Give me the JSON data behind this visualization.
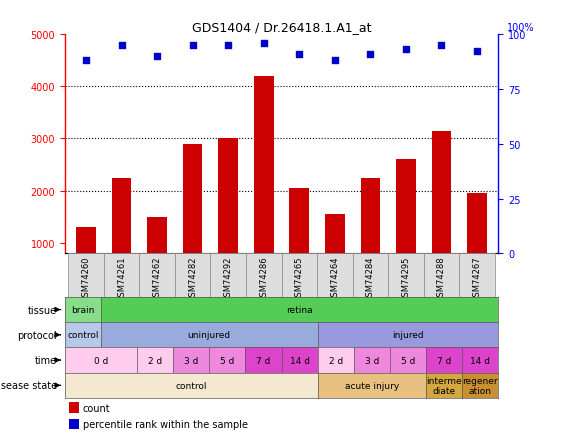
{
  "title": "GDS1404 / Dr.26418.1.A1_at",
  "samples": [
    "GSM74260",
    "GSM74261",
    "GSM74262",
    "GSM74282",
    "GSM74292",
    "GSM74286",
    "GSM74265",
    "GSM74264",
    "GSM74284",
    "GSM74295",
    "GSM74288",
    "GSM74267"
  ],
  "counts": [
    1300,
    2250,
    1500,
    2900,
    3000,
    4200,
    2050,
    1550,
    2250,
    2600,
    3150,
    1950
  ],
  "percentiles": [
    88,
    95,
    90,
    95,
    95,
    96,
    91,
    88,
    91,
    93,
    95,
    92
  ],
  "bar_color": "#cc0000",
  "dot_color": "#0000cc",
  "ylim_left": [
    800,
    5000
  ],
  "ylim_right": [
    0,
    100
  ],
  "yticks_left": [
    1000,
    2000,
    3000,
    4000,
    5000
  ],
  "yticks_right": [
    0,
    25,
    50,
    75,
    100
  ],
  "tissue_row": {
    "label": "tissue",
    "segments": [
      {
        "text": "brain",
        "start": 0,
        "end": 1,
        "color": "#88dd88"
      },
      {
        "text": "retina",
        "start": 1,
        "end": 12,
        "color": "#55cc55"
      }
    ]
  },
  "protocol_row": {
    "label": "protocol",
    "segments": [
      {
        "text": "control",
        "start": 0,
        "end": 1,
        "color": "#b8c8e8"
      },
      {
        "text": "uninjured",
        "start": 1,
        "end": 7,
        "color": "#99aadd"
      },
      {
        "text": "injured",
        "start": 7,
        "end": 12,
        "color": "#9999dd"
      }
    ]
  },
  "time_row": {
    "label": "time",
    "segments": [
      {
        "text": "0 d",
        "start": 0,
        "end": 2,
        "color": "#ffccee"
      },
      {
        "text": "2 d",
        "start": 2,
        "end": 3,
        "color": "#ffccee"
      },
      {
        "text": "3 d",
        "start": 3,
        "end": 4,
        "color": "#ee88dd"
      },
      {
        "text": "5 d",
        "start": 4,
        "end": 5,
        "color": "#ee88dd"
      },
      {
        "text": "7 d",
        "start": 5,
        "end": 6,
        "color": "#dd44cc"
      },
      {
        "text": "14 d",
        "start": 6,
        "end": 7,
        "color": "#dd44cc"
      },
      {
        "text": "2 d",
        "start": 7,
        "end": 8,
        "color": "#ffccee"
      },
      {
        "text": "3 d",
        "start": 8,
        "end": 9,
        "color": "#ee88dd"
      },
      {
        "text": "5 d",
        "start": 9,
        "end": 10,
        "color": "#ee88dd"
      },
      {
        "text": "7 d",
        "start": 10,
        "end": 11,
        "color": "#dd44cc"
      },
      {
        "text": "14 d",
        "start": 11,
        "end": 12,
        "color": "#dd44cc"
      }
    ]
  },
  "disease_row": {
    "label": "disease state",
    "segments": [
      {
        "text": "control",
        "start": 0,
        "end": 7,
        "color": "#f5e8d0"
      },
      {
        "text": "acute injury",
        "start": 7,
        "end": 10,
        "color": "#e8c080"
      },
      {
        "text": "interme\ndiate",
        "start": 10,
        "end": 11,
        "color": "#d4a840"
      },
      {
        "text": "regener\nation",
        "start": 11,
        "end": 12,
        "color": "#c89030"
      }
    ]
  }
}
